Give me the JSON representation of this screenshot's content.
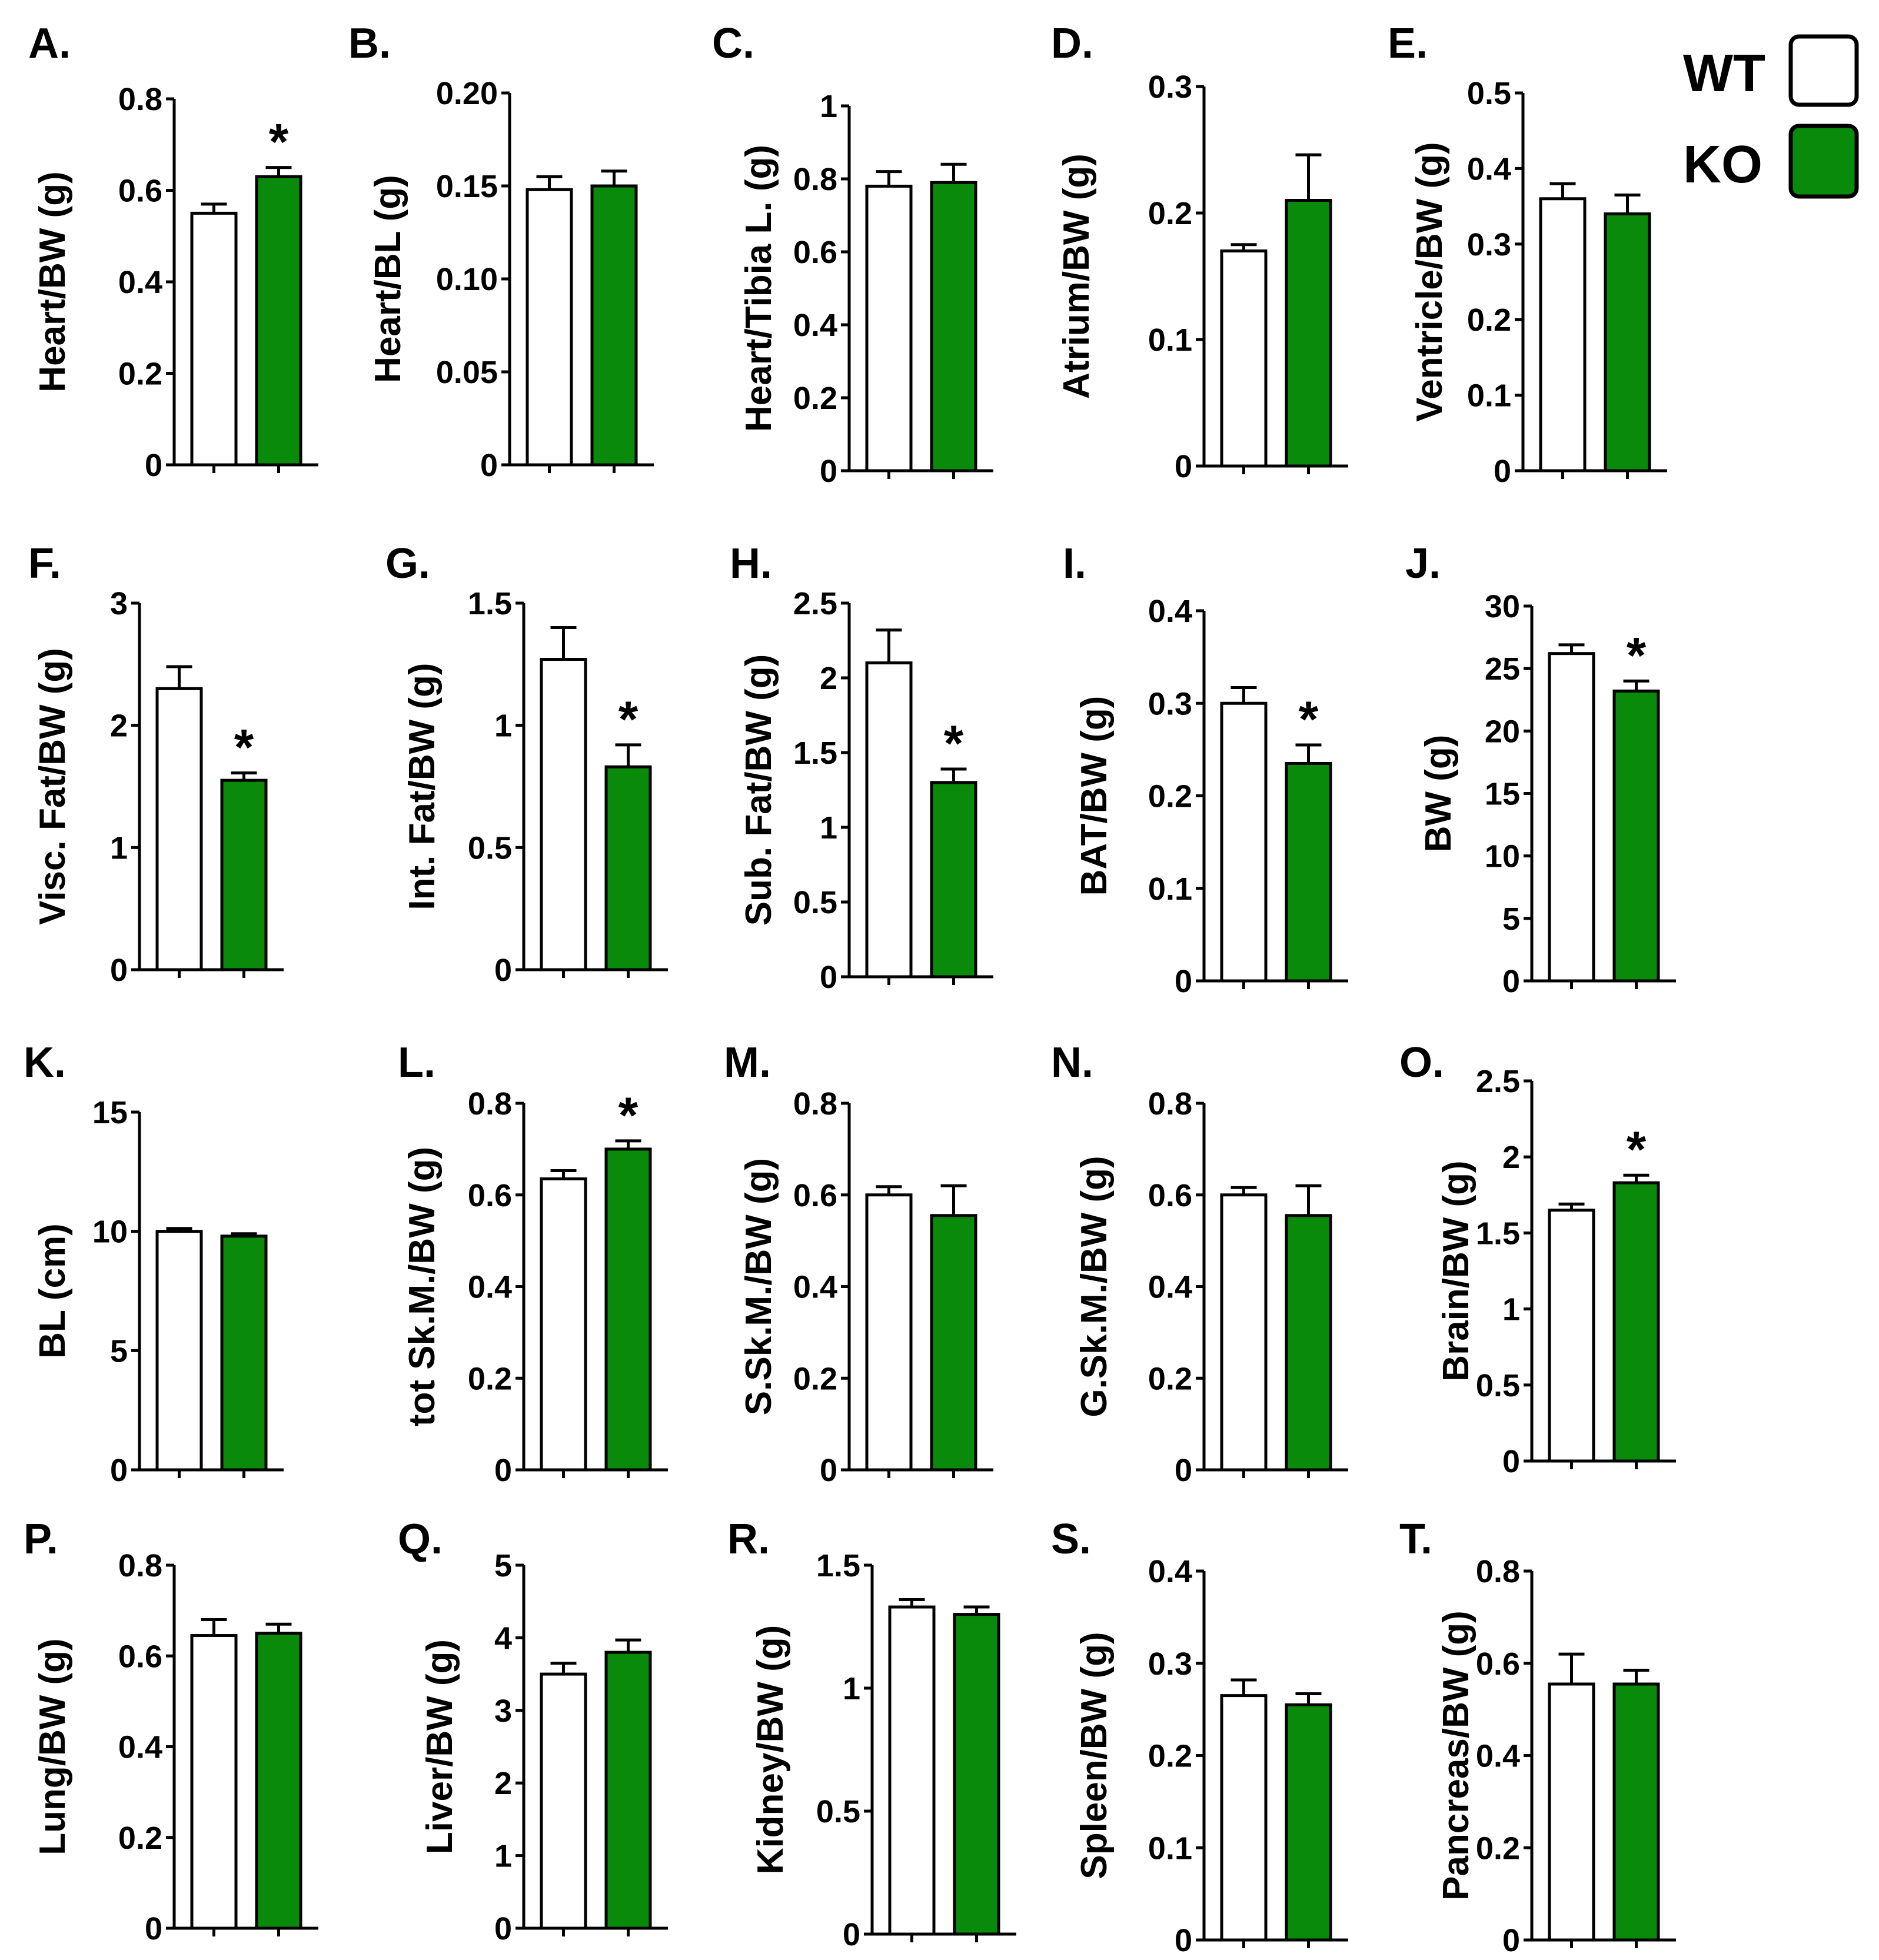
{
  "figure": {
    "legend": [
      {
        "label": "WT",
        "color": "#ffffff"
      },
      {
        "label": "KO",
        "color": "#0a8a0a"
      }
    ]
  },
  "chart_data": [
    {
      "panel": "A.",
      "type": "bar",
      "ylabel": "Heart/BW (g)",
      "categories": [
        "WT",
        "KO"
      ],
      "values": [
        0.55,
        0.63
      ],
      "errors": [
        0.02,
        0.02
      ],
      "ylim": [
        0,
        0.8
      ],
      "ticks": [
        0,
        0.2,
        0.4,
        0.6,
        0.8
      ],
      "tick_labels": [
        "0",
        "0.2",
        "0.4",
        "0.6",
        "0.8"
      ],
      "annotations": [
        {
          "category": "KO",
          "text": "*"
        }
      ]
    },
    {
      "panel": "B.",
      "type": "bar",
      "ylabel": "Heart/BL (g)",
      "categories": [
        "WT",
        "KO"
      ],
      "values": [
        0.148,
        0.15
      ],
      "errors": [
        0.007,
        0.008
      ],
      "ylim": [
        0,
        0.2
      ],
      "ticks": [
        0,
        0.05,
        0.1,
        0.15,
        0.2
      ],
      "tick_labels": [
        "0",
        "0.05",
        "0.10",
        "0.15",
        "0.20"
      ],
      "annotations": []
    },
    {
      "panel": "C.",
      "type": "bar",
      "ylabel": "Heart/Tibia L. (g)",
      "categories": [
        "WT",
        "KO"
      ],
      "values": [
        0.78,
        0.79
      ],
      "errors": [
        0.04,
        0.05
      ],
      "ylim": [
        0,
        1
      ],
      "ticks": [
        0,
        0.2,
        0.4,
        0.6,
        0.8,
        1
      ],
      "tick_labels": [
        "0",
        "0.2",
        "0.4",
        "0.6",
        "0.8",
        "1"
      ],
      "annotations": []
    },
    {
      "panel": "D.",
      "type": "bar",
      "ylabel": "Atrium/BW (g)",
      "categories": [
        "WT",
        "KO"
      ],
      "values": [
        0.17,
        0.21
      ],
      "errors": [
        0.005,
        0.036
      ],
      "ylim": [
        0,
        0.3
      ],
      "ticks": [
        0,
        0.1,
        0.2,
        0.3
      ],
      "tick_labels": [
        "0",
        "0.1",
        "0.2",
        "0.3"
      ],
      "annotations": []
    },
    {
      "panel": "E.",
      "type": "bar",
      "ylabel": "Ventricle/BW (g)",
      "categories": [
        "WT",
        "KO"
      ],
      "values": [
        0.36,
        0.34
      ],
      "errors": [
        0.02,
        0.025
      ],
      "ylim": [
        0,
        0.5
      ],
      "ticks": [
        0,
        0.1,
        0.2,
        0.3,
        0.4,
        0.5
      ],
      "tick_labels": [
        "0",
        "0.1",
        "0.2",
        "0.3",
        "0.4",
        "0.5"
      ],
      "annotations": []
    },
    {
      "panel": "F.",
      "type": "bar",
      "ylabel": "Visc. Fat/BW (g)",
      "categories": [
        "WT",
        "KO"
      ],
      "values": [
        2.3,
        1.55
      ],
      "errors": [
        0.18,
        0.06
      ],
      "ylim": [
        0,
        3
      ],
      "ticks": [
        0,
        1,
        2,
        3
      ],
      "tick_labels": [
        "0",
        "1",
        "2",
        "3"
      ],
      "annotations": [
        {
          "category": "KO",
          "text": "*"
        }
      ]
    },
    {
      "panel": "G.",
      "type": "bar",
      "ylabel": "Int. Fat/BW (g)",
      "categories": [
        "WT",
        "KO"
      ],
      "values": [
        1.27,
        0.83
      ],
      "errors": [
        0.13,
        0.09
      ],
      "ylim": [
        0,
        1.5
      ],
      "ticks": [
        0,
        0.5,
        1,
        1.5
      ],
      "tick_labels": [
        "0",
        "0.5",
        "1",
        "1.5"
      ],
      "annotations": [
        {
          "category": "KO",
          "text": "*"
        }
      ]
    },
    {
      "panel": "H.",
      "type": "bar",
      "ylabel": "Sub. Fat/BW (g)",
      "categories": [
        "WT",
        "KO"
      ],
      "values": [
        2.1,
        1.3
      ],
      "errors": [
        0.22,
        0.09
      ],
      "ylim": [
        0,
        2.5
      ],
      "ticks": [
        0,
        0.5,
        1,
        1.5,
        2,
        2.5
      ],
      "tick_labels": [
        "0",
        "0.5",
        "1",
        "1.5",
        "2",
        "2.5"
      ],
      "annotations": [
        {
          "category": "KO",
          "text": "*"
        }
      ]
    },
    {
      "panel": "I.",
      "type": "bar",
      "ylabel": "BAT/BW (g)",
      "categories": [
        "WT",
        "KO"
      ],
      "values": [
        0.3,
        0.235
      ],
      "errors": [
        0.017,
        0.02
      ],
      "ylim": [
        0,
        0.4
      ],
      "ticks": [
        0,
        0.1,
        0.2,
        0.3,
        0.4
      ],
      "tick_labels": [
        "0",
        "0.1",
        "0.2",
        "0.3",
        "0.4"
      ],
      "annotations": [
        {
          "category": "KO",
          "text": "*"
        }
      ]
    },
    {
      "panel": "J.",
      "type": "bar",
      "ylabel": "BW (g)",
      "categories": [
        "WT",
        "KO"
      ],
      "values": [
        26.2,
        23.2
      ],
      "errors": [
        0.7,
        0.8
      ],
      "ylim": [
        0,
        30
      ],
      "ticks": [
        0,
        5,
        10,
        15,
        20,
        25,
        30
      ],
      "tick_labels": [
        "0",
        "5",
        "10",
        "15",
        "20",
        "25",
        "30"
      ],
      "annotations": [
        {
          "category": "KO",
          "text": "*"
        }
      ]
    },
    {
      "panel": "K.",
      "type": "bar",
      "ylabel": "BL (cm)",
      "categories": [
        "WT",
        "KO"
      ],
      "values": [
        10.0,
        9.8
      ],
      "errors": [
        0.12,
        0.1
      ],
      "ylim": [
        0,
        15
      ],
      "ticks": [
        0,
        5,
        10,
        15
      ],
      "tick_labels": [
        "0",
        "5",
        "10",
        "15"
      ],
      "annotations": []
    },
    {
      "panel": "L.",
      "type": "bar",
      "ylabel": "tot Sk.M./BW (g)",
      "categories": [
        "WT",
        "KO"
      ],
      "values": [
        0.635,
        0.7
      ],
      "errors": [
        0.018,
        0.018
      ],
      "ylim": [
        0,
        0.8
      ],
      "ticks": [
        0,
        0.2,
        0.4,
        0.6,
        0.8
      ],
      "tick_labels": [
        "0",
        "0.2",
        "0.4",
        "0.6",
        "0.8"
      ],
      "annotations": [
        {
          "category": "KO",
          "text": "*"
        }
      ]
    },
    {
      "panel": "M.",
      "type": "bar",
      "ylabel": "S.Sk.M./BW (g)",
      "categories": [
        "WT",
        "KO"
      ],
      "values": [
        0.6,
        0.555
      ],
      "errors": [
        0.018,
        0.065
      ],
      "ylim": [
        0,
        0.8
      ],
      "ticks": [
        0,
        0.2,
        0.4,
        0.6,
        0.8
      ],
      "tick_labels": [
        "0",
        "0.2",
        "0.4",
        "0.6",
        "0.8"
      ],
      "annotations": []
    },
    {
      "panel": "N.",
      "type": "bar",
      "ylabel": "G.Sk.M./BW (g)",
      "categories": [
        "WT",
        "KO"
      ],
      "values": [
        0.6,
        0.555
      ],
      "errors": [
        0.016,
        0.065
      ],
      "ylim": [
        0,
        0.8
      ],
      "ticks": [
        0,
        0.2,
        0.4,
        0.6,
        0.8
      ],
      "tick_labels": [
        "0",
        "0.2",
        "0.4",
        "0.6",
        "0.8"
      ],
      "annotations": []
    },
    {
      "panel": "O.",
      "type": "bar",
      "ylabel": "Brain/BW (g)",
      "categories": [
        "WT",
        "KO"
      ],
      "values": [
        1.65,
        1.83
      ],
      "errors": [
        0.04,
        0.05
      ],
      "ylim": [
        0,
        2.5
      ],
      "ticks": [
        0,
        0.5,
        1,
        1.5,
        2,
        2.5
      ],
      "tick_labels": [
        "0",
        "0.5",
        "1",
        "1.5",
        "2",
        "2.5"
      ],
      "annotations": [
        {
          "category": "KO",
          "text": "*"
        }
      ]
    },
    {
      "panel": "P.",
      "type": "bar",
      "ylabel": "Lung/BW (g)",
      "categories": [
        "WT",
        "KO"
      ],
      "values": [
        0.645,
        0.65
      ],
      "errors": [
        0.035,
        0.02
      ],
      "ylim": [
        0,
        0.8
      ],
      "ticks": [
        0,
        0.2,
        0.4,
        0.6,
        0.8
      ],
      "tick_labels": [
        "0",
        "0.2",
        "0.4",
        "0.6",
        "0.8"
      ],
      "annotations": []
    },
    {
      "panel": "Q.",
      "type": "bar",
      "ylabel": "Liver/BW (g)",
      "categories": [
        "WT",
        "KO"
      ],
      "values": [
        3.5,
        3.8
      ],
      "errors": [
        0.15,
        0.17
      ],
      "ylim": [
        0,
        5
      ],
      "ticks": [
        0,
        1,
        2,
        3,
        4,
        5
      ],
      "tick_labels": [
        "0",
        "1",
        "2",
        "3",
        "4",
        "5"
      ],
      "annotations": []
    },
    {
      "panel": "R.",
      "type": "bar",
      "ylabel": "Kidney/BW (g)",
      "categories": [
        "WT",
        "KO"
      ],
      "values": [
        1.33,
        1.3
      ],
      "errors": [
        0.03,
        0.03
      ],
      "ylim": [
        0,
        1.5
      ],
      "ticks": [
        0,
        0.5,
        1,
        1.5
      ],
      "tick_labels": [
        "0",
        "0.5",
        "1",
        "1.5"
      ],
      "annotations": []
    },
    {
      "panel": "S.",
      "type": "bar",
      "ylabel": "Spleen/BW (g)",
      "categories": [
        "WT",
        "KO"
      ],
      "values": [
        0.265,
        0.255
      ],
      "errors": [
        0.017,
        0.012
      ],
      "ylim": [
        0,
        0.4
      ],
      "ticks": [
        0,
        0.1,
        0.2,
        0.3,
        0.4
      ],
      "tick_labels": [
        "0",
        "0.1",
        "0.2",
        "0.3",
        "0.4"
      ],
      "annotations": []
    },
    {
      "panel": "T.",
      "type": "bar",
      "ylabel": "Pancreas/BW (g)",
      "categories": [
        "WT",
        "KO"
      ],
      "values": [
        0.555,
        0.555
      ],
      "errors": [
        0.065,
        0.03
      ],
      "ylim": [
        0,
        0.8
      ],
      "ticks": [
        0,
        0.2,
        0.4,
        0.6,
        0.8
      ],
      "tick_labels": [
        "0",
        "0.2",
        "0.4",
        "0.6",
        "0.8"
      ],
      "annotations": []
    }
  ]
}
